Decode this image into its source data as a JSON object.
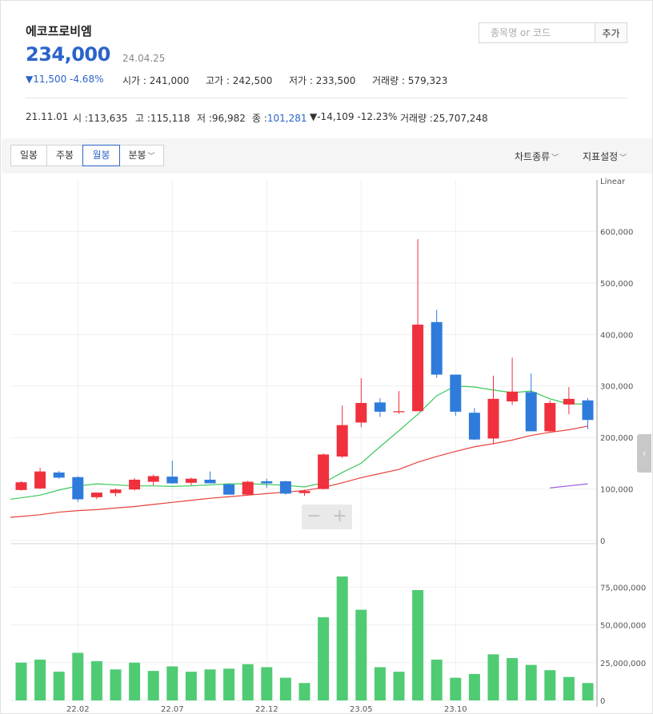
{
  "header": {
    "name": "에코프로비엠",
    "price": "234,000",
    "date": "24.04.25",
    "change": "▼11,500 -4.68%",
    "stats": [
      {
        "label": "시가",
        "value": "241,000"
      },
      {
        "label": "고가",
        "value": "242,500"
      },
      {
        "label": "저가",
        "value": "233,500"
      },
      {
        "label": "거래량",
        "value": "579,323"
      }
    ]
  },
  "search": {
    "placeholder": "종목명 or 코드",
    "button_label": "추가"
  },
  "selected": {
    "date": "21.11.01",
    "open_label": "시 :",
    "open": "113,635",
    "high_label": "고 :",
    "high": "115,118",
    "low_label": "저 :",
    "low": "96,982",
    "close_label": "종 :",
    "close": "101,281",
    "change": "▼-14,109 -12.23%",
    "volume_label": "거래량 :",
    "volume": "25,707,248"
  },
  "toolbar": {
    "periods": [
      "일봉",
      "주봉",
      "월봉",
      "분봉"
    ],
    "active_period": "월봉",
    "chart_type_label": "차트종류",
    "indicator_label": "지표설정"
  },
  "zoom": {
    "minus": "−",
    "plus": "+"
  },
  "side_tab": "‹",
  "colors": {
    "up": "#f0303c",
    "down": "#2e7bdc",
    "ma5": "#3cc85a",
    "ma20": "#e6413c",
    "ma60": "#9b5cdc",
    "volume": "#4fcb74",
    "price_text": "#2b64c9"
  },
  "chart_data": {
    "type": "candlestick",
    "scale_label": "Linear",
    "price_ylim": [
      0,
      700000
    ],
    "price_ticks": [
      "0",
      "100,000",
      "200,000",
      "300,000",
      "400,000",
      "500,000",
      "600,000"
    ],
    "volume_ylim": [
      0,
      100000000
    ],
    "volume_ticks": [
      "0",
      "25,000,000",
      "50,000,000",
      "75,000,000"
    ],
    "x_tick_labels": [
      "22.02",
      "22.07",
      "22.12",
      "23.05",
      "23.10"
    ],
    "x_tick_index": [
      3,
      8,
      13,
      18,
      23
    ],
    "candles": [
      {
        "o": 98000,
        "h": 115000,
        "l": 97000,
        "c": 113000
      },
      {
        "o": 101000,
        "h": 141000,
        "l": 100000,
        "c": 134000
      },
      {
        "o": 132000,
        "h": 135000,
        "l": 120000,
        "c": 122000
      },
      {
        "o": 123000,
        "h": 125000,
        "l": 75000,
        "c": 80000
      },
      {
        "o": 84000,
        "h": 93000,
        "l": 80000,
        "c": 93000
      },
      {
        "o": 92000,
        "h": 101000,
        "l": 86000,
        "c": 99000
      },
      {
        "o": 99000,
        "h": 121000,
        "l": 97000,
        "c": 118000
      },
      {
        "o": 114000,
        "h": 128000,
        "l": 107000,
        "c": 125000
      },
      {
        "o": 124000,
        "h": 155000,
        "l": 110000,
        "c": 111000
      },
      {
        "o": 112000,
        "h": 122000,
        "l": 107000,
        "c": 120000
      },
      {
        "o": 118000,
        "h": 134000,
        "l": 111000,
        "c": 111000
      },
      {
        "o": 109000,
        "h": 111000,
        "l": 89000,
        "c": 89000
      },
      {
        "o": 89000,
        "h": 116000,
        "l": 88000,
        "c": 114000
      },
      {
        "o": 115000,
        "h": 120000,
        "l": 102000,
        "c": 111000
      },
      {
        "o": 115000,
        "h": 116000,
        "l": 89000,
        "c": 91000
      },
      {
        "o": 92000,
        "h": 99000,
        "l": 87000,
        "c": 96000
      },
      {
        "o": 100000,
        "h": 169000,
        "l": 99000,
        "c": 167000
      },
      {
        "o": 163000,
        "h": 262000,
        "l": 160000,
        "c": 224000
      },
      {
        "o": 229000,
        "h": 315000,
        "l": 220000,
        "c": 267000
      },
      {
        "o": 268000,
        "h": 276000,
        "l": 240000,
        "c": 250000
      },
      {
        "o": 249000,
        "h": 290000,
        "l": 246000,
        "c": 251000
      },
      {
        "o": 251000,
        "h": 585000,
        "l": 252000,
        "c": 419000
      },
      {
        "o": 424000,
        "h": 448000,
        "l": 316000,
        "c": 322000
      },
      {
        "o": 322000,
        "h": 322000,
        "l": 242000,
        "c": 250000
      },
      {
        "o": 248000,
        "h": 257000,
        "l": 195000,
        "c": 196000
      },
      {
        "o": 198000,
        "h": 320000,
        "l": 187000,
        "c": 275000
      },
      {
        "o": 270000,
        "h": 355000,
        "l": 263000,
        "c": 289000
      },
      {
        "o": 288000,
        "h": 324000,
        "l": 212000,
        "c": 212000
      },
      {
        "o": 212000,
        "h": 272000,
        "l": 210000,
        "c": 267000
      },
      {
        "o": 264000,
        "h": 298000,
        "l": 245000,
        "c": 275000
      },
      {
        "o": 272000,
        "h": 276000,
        "l": 216000,
        "c": 234000
      }
    ],
    "volume": [
      25000000,
      27000000,
      19000000,
      31500000,
      26000000,
      20500000,
      25000000,
      19500000,
      22500000,
      19000000,
      20500000,
      21000000,
      24000000,
      22000000,
      15000000,
      11500000,
      55000000,
      82000000,
      60000000,
      22000000,
      19000000,
      73000000,
      27000000,
      15000000,
      17500000,
      30500000,
      28000000,
      23500000,
      20000000,
      15500000,
      11500000
    ],
    "ma5": [
      80000,
      88000,
      98000,
      106000,
      110000,
      108000,
      106000,
      106000,
      105000,
      106000,
      108000,
      110000,
      110000,
      109000,
      107000,
      104000,
      112000,
      132000,
      150000,
      182000,
      213000,
      245000,
      281000,
      300000,
      298000,
      292000,
      287000,
      290000,
      275000,
      265000,
      265000
    ],
    "ma20": [
      45000,
      50000,
      55000,
      58000,
      60000,
      63000,
      66000,
      70000,
      74000,
      78000,
      82000,
      85000,
      88000,
      91000,
      94000,
      97000,
      103000,
      112000,
      122000,
      130000,
      138000,
      152000,
      163000,
      173000,
      182000,
      188000,
      195000,
      204000,
      210000,
      215000,
      222000
    ],
    "ma60": [
      null,
      null,
      null,
      null,
      null,
      null,
      null,
      null,
      null,
      null,
      null,
      null,
      null,
      null,
      null,
      null,
      null,
      null,
      null,
      null,
      null,
      null,
      null,
      null,
      null,
      null,
      null,
      null,
      102000,
      106000,
      110000
    ]
  }
}
